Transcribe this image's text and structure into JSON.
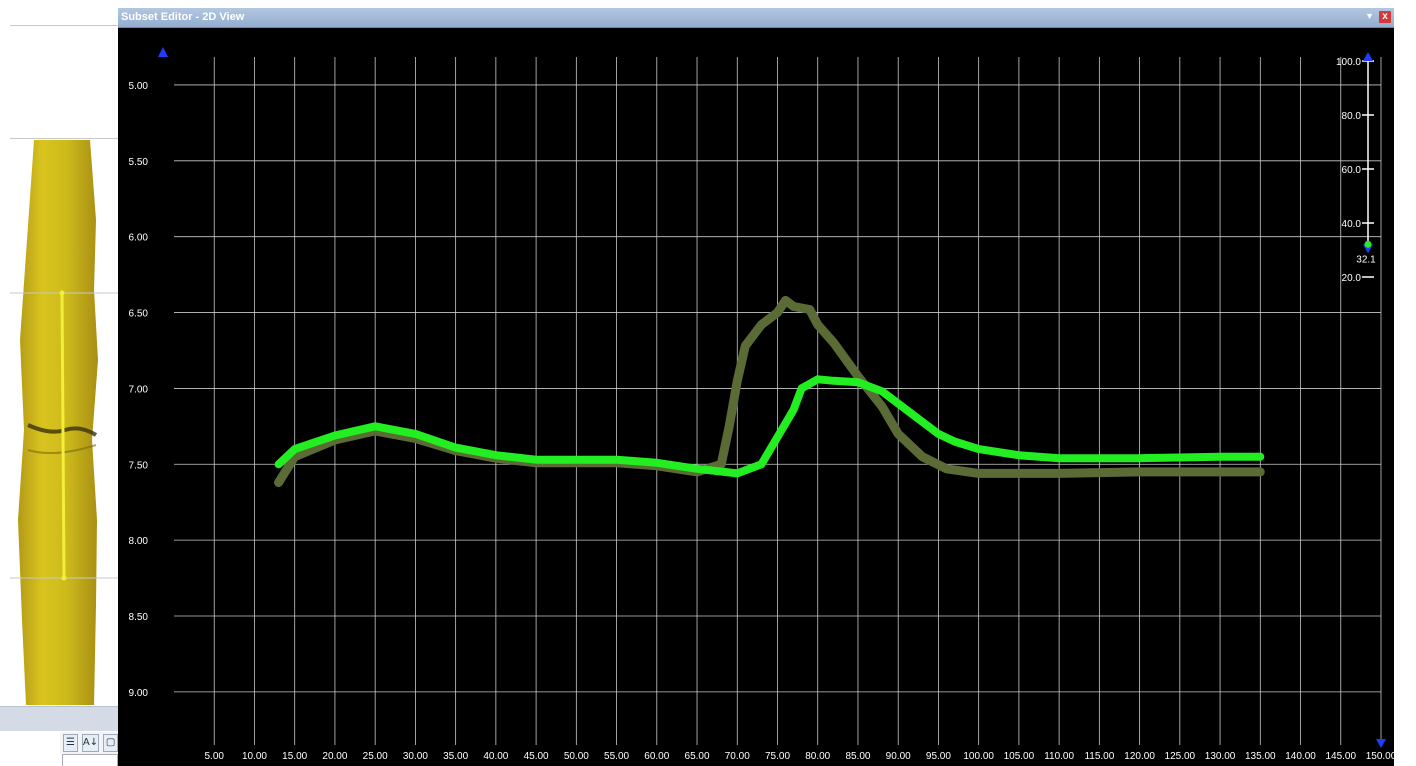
{
  "window": {
    "title": "Subset Editor - 2D View",
    "dropdown_icon": "dropdown-arrow-icon",
    "close_icon": "close-icon",
    "close_label": "x"
  },
  "left_panel": {
    "toolbar": [
      {
        "name": "categorized-view-button",
        "icon": "categorized-list-icon",
        "label": "☰"
      },
      {
        "name": "sort-az-button",
        "icon": "sort-az-icon",
        "label": "A↓"
      },
      {
        "name": "property-pages-button",
        "icon": "property-pages-icon",
        "label": "▢"
      }
    ]
  },
  "chart_data": {
    "type": "scatter",
    "x_ticks": [
      "5.00",
      "10.00",
      "15.00",
      "20.00",
      "25.00",
      "30.00",
      "35.00",
      "40.00",
      "45.00",
      "50.00",
      "55.00",
      "60.00",
      "65.00",
      "70.00",
      "75.00",
      "80.00",
      "85.00",
      "90.00",
      "95.00",
      "100.00",
      "105.00",
      "110.00",
      "115.00",
      "120.00",
      "125.00",
      "130.00",
      "135.00",
      "140.00",
      "145.00",
      "150.00"
    ],
    "y_ticks": [
      "5.00",
      "5.50",
      "6.00",
      "6.50",
      "7.00",
      "7.50",
      "8.00",
      "8.50",
      "9.00"
    ],
    "xlim": [
      0,
      150
    ],
    "ylim": [
      4.75,
      9.35
    ],
    "y_inverted": true,
    "grid": true,
    "series": [
      {
        "color": "#5a6b35",
        "points": [
          [
            13,
            7.62
          ],
          [
            15,
            7.45
          ],
          [
            20,
            7.34
          ],
          [
            25,
            7.28
          ],
          [
            30,
            7.33
          ],
          [
            35,
            7.41
          ],
          [
            40,
            7.46
          ],
          [
            45,
            7.49
          ],
          [
            50,
            7.49
          ],
          [
            55,
            7.49
          ],
          [
            60,
            7.51
          ],
          [
            65,
            7.55
          ],
          [
            68,
            7.5
          ],
          [
            69,
            7.25
          ],
          [
            70,
            6.95
          ],
          [
            71,
            6.72
          ],
          [
            73,
            6.58
          ],
          [
            75,
            6.5
          ],
          [
            76,
            6.42
          ],
          [
            77,
            6.46
          ],
          [
            79,
            6.48
          ],
          [
            80,
            6.58
          ],
          [
            82,
            6.7
          ],
          [
            85,
            6.92
          ],
          [
            88,
            7.12
          ],
          [
            90,
            7.3
          ],
          [
            93,
            7.45
          ],
          [
            96,
            7.53
          ],
          [
            100,
            7.56
          ],
          [
            110,
            7.56
          ],
          [
            120,
            7.55
          ],
          [
            130,
            7.55
          ],
          [
            135,
            7.55
          ]
        ]
      },
      {
        "color": "#22ee22",
        "points": [
          [
            13,
            7.5
          ],
          [
            15,
            7.4
          ],
          [
            20,
            7.31
          ],
          [
            25,
            7.25
          ],
          [
            30,
            7.3
          ],
          [
            35,
            7.39
          ],
          [
            40,
            7.44
          ],
          [
            45,
            7.47
          ],
          [
            50,
            7.47
          ],
          [
            55,
            7.47
          ],
          [
            60,
            7.49
          ],
          [
            65,
            7.53
          ],
          [
            70,
            7.56
          ],
          [
            73,
            7.5
          ],
          [
            75,
            7.32
          ],
          [
            77,
            7.14
          ],
          [
            78,
            7.0
          ],
          [
            80,
            6.94
          ],
          [
            82,
            6.95
          ],
          [
            85,
            6.96
          ],
          [
            88,
            7.02
          ],
          [
            90,
            7.1
          ],
          [
            93,
            7.22
          ],
          [
            95,
            7.3
          ],
          [
            97,
            7.35
          ],
          [
            100,
            7.4
          ],
          [
            105,
            7.44
          ],
          [
            110,
            7.46
          ],
          [
            120,
            7.46
          ],
          [
            130,
            7.45
          ],
          [
            135,
            7.45
          ]
        ]
      }
    ]
  },
  "slider": {
    "ticks": [
      "100.0",
      "80.0",
      "60.0",
      "40.0",
      "20.0"
    ],
    "top_value": 100,
    "bottom_value": 0,
    "upper_value": 32.1,
    "upper_label": "32.1",
    "current_value": 32.1
  }
}
